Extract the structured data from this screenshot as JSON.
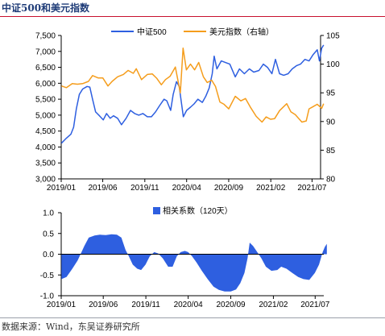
{
  "title": "中证500和美元指数",
  "source": "数据来源：Wind，东吴证券研究所",
  "colors": {
    "csi500": "#2e5fe0",
    "dxy": "#f59d1c",
    "corr": "#2e5fe0",
    "title": "#1f3c78"
  },
  "chart_data": [
    {
      "type": "line",
      "legend_position": "top-center",
      "grid": false,
      "x_ticks": [
        "2019/01",
        "2019/06",
        "2019/11",
        "2020/04",
        "2020/09",
        "2021/02",
        "2021/07"
      ],
      "x_range": [
        "2019-01",
        "2021-08"
      ],
      "y_left": {
        "range": [
          3000,
          7500
        ],
        "ticks": [
          "3,000",
          "3,500",
          "4,000",
          "4,500",
          "5,000",
          "5,500",
          "6,000",
          "6,500",
          "7,000",
          "7,500"
        ]
      },
      "y_right": {
        "range": [
          80,
          105
        ],
        "ticks": [
          "80",
          "85",
          "90",
          "95",
          "100",
          "105"
        ]
      },
      "series": [
        {
          "name": "中证500",
          "axis": "left",
          "points": [
            [
              "2019-01-02",
              4120
            ],
            [
              "2019-01-20",
              4280
            ],
            [
              "2019-02-05",
              4400
            ],
            [
              "2019-02-15",
              4620
            ],
            [
              "2019-02-25",
              5200
            ],
            [
              "2019-03-08",
              5650
            ],
            [
              "2019-03-20",
              5820
            ],
            [
              "2019-04-05",
              5900
            ],
            [
              "2019-04-15",
              5880
            ],
            [
              "2019-04-25",
              5500
            ],
            [
              "2019-05-06",
              5100
            ],
            [
              "2019-05-20",
              4980
            ],
            [
              "2019-06-03",
              4850
            ],
            [
              "2019-06-15",
              5050
            ],
            [
              "2019-06-28",
              4900
            ],
            [
              "2019-07-10",
              4980
            ],
            [
              "2019-07-25",
              4900
            ],
            [
              "2019-08-08",
              4700
            ],
            [
              "2019-08-25",
              4900
            ],
            [
              "2019-09-10",
              5150
            ],
            [
              "2019-09-25",
              5050
            ],
            [
              "2019-10-10",
              5000
            ],
            [
              "2019-10-25",
              5050
            ],
            [
              "2019-11-10",
              4950
            ],
            [
              "2019-11-25",
              4950
            ],
            [
              "2019-12-10",
              5100
            ],
            [
              "2019-12-25",
              5300
            ],
            [
              "2020-01-10",
              5500
            ],
            [
              "2020-01-20",
              5450
            ],
            [
              "2020-02-03",
              5150
            ],
            [
              "2020-02-12",
              5650
            ],
            [
              "2020-02-24",
              6050
            ],
            [
              "2020-03-05",
              5900
            ],
            [
              "2020-03-20",
              4950
            ],
            [
              "2020-04-01",
              5150
            ],
            [
              "2020-04-15",
              5250
            ],
            [
              "2020-04-28",
              5350
            ],
            [
              "2020-05-12",
              5500
            ],
            [
              "2020-05-28",
              5400
            ],
            [
              "2020-06-10",
              5600
            ],
            [
              "2020-06-22",
              5850
            ],
            [
              "2020-07-03",
              6300
            ],
            [
              "2020-07-10",
              6850
            ],
            [
              "2020-07-20",
              6450
            ],
            [
              "2020-08-05",
              6700
            ],
            [
              "2020-08-20",
              6650
            ],
            [
              "2020-09-05",
              6600
            ],
            [
              "2020-09-25",
              6200
            ],
            [
              "2020-10-10",
              6450
            ],
            [
              "2020-10-28",
              6300
            ],
            [
              "2020-11-15",
              6450
            ],
            [
              "2020-12-01",
              6350
            ],
            [
              "2020-12-20",
              6400
            ],
            [
              "2021-01-05",
              6600
            ],
            [
              "2021-01-20",
              6500
            ],
            [
              "2021-02-05",
              6300
            ],
            [
              "2021-02-18",
              6750
            ],
            [
              "2021-03-05",
              6300
            ],
            [
              "2021-03-20",
              6250
            ],
            [
              "2021-04-05",
              6300
            ],
            [
              "2021-04-20",
              6450
            ],
            [
              "2021-05-05",
              6550
            ],
            [
              "2021-05-20",
              6600
            ],
            [
              "2021-06-05",
              6750
            ],
            [
              "2021-06-20",
              6700
            ],
            [
              "2021-07-05",
              6900
            ],
            [
              "2021-07-20",
              7050
            ],
            [
              "2021-07-28",
              6700
            ],
            [
              "2021-08-05",
              7100
            ],
            [
              "2021-08-12",
              7200
            ]
          ]
        },
        {
          "name": "美元指数（右轴）",
          "axis": "right",
          "points": [
            [
              "2019-01-02",
              96.2
            ],
            [
              "2019-01-20",
              95.9
            ],
            [
              "2019-02-10",
              96.6
            ],
            [
              "2019-03-01",
              96.5
            ],
            [
              "2019-03-20",
              96.6
            ],
            [
              "2019-04-10",
              97.0
            ],
            [
              "2019-04-25",
              98.0
            ],
            [
              "2019-05-15",
              97.6
            ],
            [
              "2019-06-01",
              97.6
            ],
            [
              "2019-06-20",
              96.2
            ],
            [
              "2019-07-05",
              97.0
            ],
            [
              "2019-07-25",
              97.8
            ],
            [
              "2019-08-15",
              98.2
            ],
            [
              "2019-09-01",
              98.9
            ],
            [
              "2019-09-20",
              98.4
            ],
            [
              "2019-10-01",
              99.2
            ],
            [
              "2019-10-20",
              97.3
            ],
            [
              "2019-11-10",
              98.2
            ],
            [
              "2019-11-28",
              98.3
            ],
            [
              "2019-12-15",
              97.5
            ],
            [
              "2019-12-31",
              96.4
            ],
            [
              "2020-01-15",
              97.3
            ],
            [
              "2020-02-01",
              97.9
            ],
            [
              "2020-02-20",
              99.5
            ],
            [
              "2020-03-09",
              95.0
            ],
            [
              "2020-03-19",
              102.8
            ],
            [
              "2020-03-31",
              99.0
            ],
            [
              "2020-04-15",
              100.0
            ],
            [
              "2020-04-30",
              99.0
            ],
            [
              "2020-05-15",
              100.3
            ],
            [
              "2020-06-01",
              97.8
            ],
            [
              "2020-06-15",
              96.8
            ],
            [
              "2020-07-01",
              97.2
            ],
            [
              "2020-07-15",
              96.1
            ],
            [
              "2020-07-31",
              93.4
            ],
            [
              "2020-08-15",
              93.0
            ],
            [
              "2020-09-01",
              92.2
            ],
            [
              "2020-09-25",
              94.4
            ],
            [
              "2020-10-15",
              93.6
            ],
            [
              "2020-11-01",
              94.0
            ],
            [
              "2020-11-20",
              92.4
            ],
            [
              "2020-12-10",
              90.9
            ],
            [
              "2020-12-31",
              89.9
            ],
            [
              "2021-01-15",
              90.8
            ],
            [
              "2021-01-31",
              90.4
            ],
            [
              "2021-02-15",
              90.5
            ],
            [
              "2021-03-05",
              91.9
            ],
            [
              "2021-03-31",
              93.1
            ],
            [
              "2021-04-15",
              91.7
            ],
            [
              "2021-05-01",
              91.2
            ],
            [
              "2021-05-25",
              89.9
            ],
            [
              "2021-06-10",
              90.1
            ],
            [
              "2021-06-20",
              92.2
            ],
            [
              "2021-07-05",
              92.6
            ],
            [
              "2021-07-20",
              93.0
            ],
            [
              "2021-08-05",
              92.3
            ],
            [
              "2021-08-12",
              93.1
            ]
          ]
        }
      ]
    },
    {
      "type": "area",
      "legend_position": "top-center",
      "grid": false,
      "x_ticks": [
        "2019/01",
        "2019/06",
        "2019/11",
        "2020/04",
        "2020/09",
        "2021/02",
        "2021/07"
      ],
      "x_range": [
        "2019-01",
        "2021-08"
      ],
      "y_range": [
        -1.0,
        1.0
      ],
      "y_ticks": [
        "1.0",
        "0.5",
        "0.0",
        "-0.5",
        "-1.0"
      ],
      "series": [
        {
          "name": "相关系数（120天）",
          "points": [
            [
              "2019-01-02",
              -0.6
            ],
            [
              "2019-01-20",
              -0.55
            ],
            [
              "2019-02-10",
              -0.35
            ],
            [
              "2019-03-01",
              -0.15
            ],
            [
              "2019-03-15",
              0.05
            ],
            [
              "2019-03-25",
              0.2
            ],
            [
              "2019-04-10",
              0.4
            ],
            [
              "2019-05-01",
              0.45
            ],
            [
              "2019-05-20",
              0.47
            ],
            [
              "2019-06-10",
              0.46
            ],
            [
              "2019-07-01",
              0.48
            ],
            [
              "2019-07-20",
              0.47
            ],
            [
              "2019-08-05",
              0.4
            ],
            [
              "2019-08-20",
              0.1
            ],
            [
              "2019-09-01",
              -0.05
            ],
            [
              "2019-09-15",
              -0.25
            ],
            [
              "2019-10-01",
              -0.35
            ],
            [
              "2019-10-15",
              -0.38
            ],
            [
              "2019-10-31",
              -0.25
            ],
            [
              "2019-11-15",
              -0.05
            ],
            [
              "2019-12-01",
              0.05
            ],
            [
              "2019-12-15",
              0.02
            ],
            [
              "2020-01-01",
              -0.1
            ],
            [
              "2020-01-20",
              -0.3
            ],
            [
              "2020-02-05",
              -0.3
            ],
            [
              "2020-02-20",
              -0.05
            ],
            [
              "2020-03-05",
              0.05
            ],
            [
              "2020-03-20",
              0.08
            ],
            [
              "2020-04-01",
              0.05
            ],
            [
              "2020-04-15",
              -0.05
            ],
            [
              "2020-05-01",
              -0.2
            ],
            [
              "2020-05-20",
              -0.4
            ],
            [
              "2020-06-10",
              -0.6
            ],
            [
              "2020-07-01",
              -0.78
            ],
            [
              "2020-07-20",
              -0.86
            ],
            [
              "2020-08-10",
              -0.9
            ],
            [
              "2020-09-01",
              -0.9
            ],
            [
              "2020-09-20",
              -0.85
            ],
            [
              "2020-10-05",
              -0.7
            ],
            [
              "2020-10-20",
              -0.45
            ],
            [
              "2020-10-31",
              -0.1
            ],
            [
              "2020-11-08",
              0.28
            ],
            [
              "2020-11-20",
              0.2
            ],
            [
              "2020-12-05",
              0.05
            ],
            [
              "2020-12-20",
              -0.1
            ],
            [
              "2021-01-05",
              -0.3
            ],
            [
              "2021-01-25",
              -0.4
            ],
            [
              "2021-02-15",
              -0.38
            ],
            [
              "2021-03-01",
              -0.3
            ],
            [
              "2021-03-20",
              -0.35
            ],
            [
              "2021-04-10",
              -0.45
            ],
            [
              "2021-05-01",
              -0.55
            ],
            [
              "2021-05-20",
              -0.6
            ],
            [
              "2021-06-10",
              -0.62
            ],
            [
              "2021-06-30",
              -0.45
            ],
            [
              "2021-07-15",
              -0.25
            ],
            [
              "2021-07-28",
              0.05
            ],
            [
              "2021-08-05",
              0.18
            ],
            [
              "2021-08-12",
              0.25
            ]
          ]
        }
      ]
    }
  ]
}
